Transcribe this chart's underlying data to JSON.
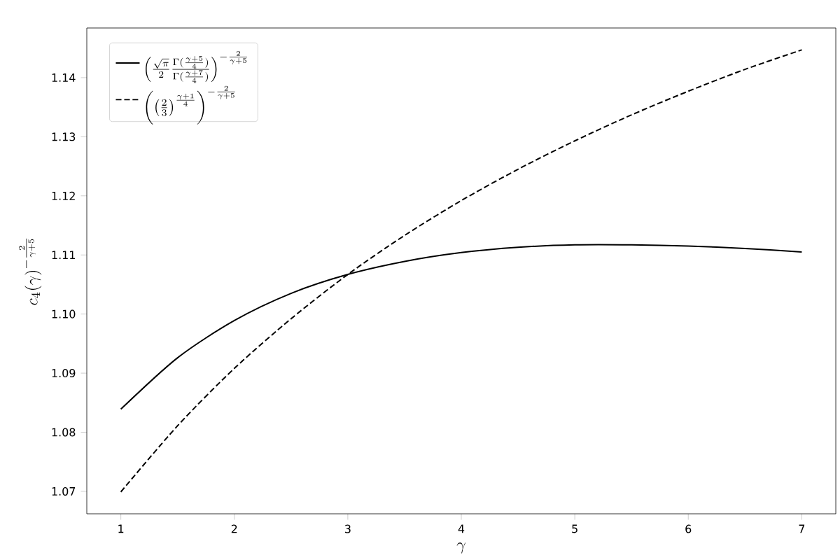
{
  "chart_data": {
    "type": "line",
    "xlabel": "\\gamma",
    "ylabel": "c_4(\\gamma)^{-\\frac{2}{\\gamma+5}}",
    "x": [
      1,
      1.5,
      2,
      2.5,
      3,
      3.5,
      4,
      4.5,
      5,
      5.5,
      6,
      6.5,
      7
    ],
    "series": [
      {
        "name": "\\left(\\frac{\\sqrt{\\pi}}{2}\\frac{\\Gamma(\\frac{\\gamma+5}{4})}{\\Gamma(\\frac{\\gamma+7}{4})}\\right)^{-\\frac{2}{\\gamma+5}}",
        "color": "#000000",
        "line_style": "solid",
        "values": [
          1.0839,
          1.0926,
          1.0989,
          1.1035,
          1.1067,
          1.1089,
          1.1104,
          1.1113,
          1.1117,
          1.1117,
          1.1115,
          1.1111,
          1.1105
        ]
      },
      {
        "name": "\\left(\\left(\\frac{2}{3}\\right)^{\\frac{\\gamma+1}{4}}\\right)^{-\\frac{2}{\\gamma+5}}",
        "color": "#000000",
        "line_style": "dashed",
        "values": [
          1.0699,
          1.0811,
          1.0908,
          1.0992,
          1.1067,
          1.1133,
          1.1192,
          1.1245,
          1.1293,
          1.1337,
          1.1377,
          1.1414,
          1.1447
        ]
      }
    ],
    "xlim": [
      0.7,
      7.3
    ],
    "ylim": [
      1.0662,
      1.1484
    ],
    "xticks": [
      1,
      2,
      3,
      4,
      5,
      6,
      7
    ],
    "yticks": [
      1.07,
      1.08,
      1.09,
      {
        "value": 1.1,
        "label": "1.10"
      },
      1.11,
      1.12,
      1.13,
      1.14
    ],
    "grid": false,
    "legend": "top left"
  }
}
